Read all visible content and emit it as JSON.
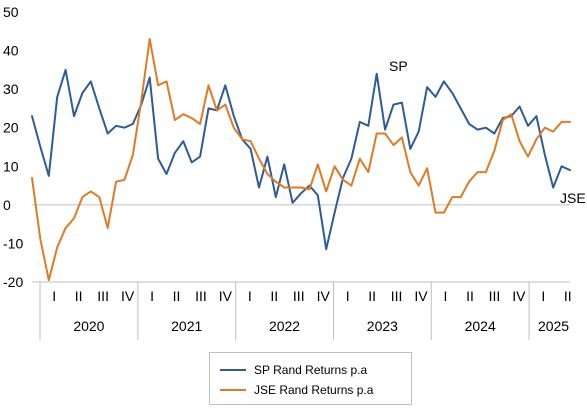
{
  "chart_data": {
    "type": "line",
    "title": "",
    "xlabel": "",
    "ylabel": "",
    "ylim": [
      -20,
      50
    ],
    "yticks": [
      -20,
      -10,
      0,
      10,
      20,
      30,
      40,
      50
    ],
    "grid": false,
    "legend_position": "bottom",
    "quarter_ticks": [
      "I",
      "II",
      "III",
      "IV",
      "I",
      "II",
      "III",
      "IV",
      "I",
      "II",
      "III",
      "IV",
      "I",
      "II",
      "III",
      "IV",
      "I",
      "II",
      "III",
      "IV",
      "I",
      "II"
    ],
    "years": [
      {
        "label": "2020",
        "start_q": 0,
        "end_q": 3
      },
      {
        "label": "2021",
        "start_q": 4,
        "end_q": 7
      },
      {
        "label": "2022",
        "start_q": 8,
        "end_q": 11
      },
      {
        "label": "2023",
        "start_q": 12,
        "end_q": 15
      },
      {
        "label": "2024",
        "start_q": 16,
        "end_q": 19
      },
      {
        "label": "2025",
        "start_q": 20,
        "end_q": 21
      }
    ],
    "series": [
      {
        "name": "SP Rand Returns p.a",
        "end_label": "SP",
        "color": "#2e5b9a",
        "values": [
          23,
          15,
          7.5,
          28,
          35,
          23,
          29,
          32,
          25,
          18.5,
          20.5,
          20,
          21,
          26,
          33,
          12,
          8,
          13.5,
          16.5,
          11,
          12.5,
          25,
          24.5,
          31,
          23,
          17,
          14.5,
          4.5,
          12.5,
          2,
          10.5,
          0.5,
          3,
          5,
          2.5,
          -11.5,
          -2,
          7,
          12,
          21.5,
          20.5,
          34,
          19.5,
          26,
          26.5,
          14.5,
          19,
          30.5,
          28,
          32,
          29,
          25,
          21,
          19.5,
          20,
          18.5,
          22.5,
          23,
          25.5,
          20.5,
          23,
          13,
          4.5,
          10,
          9
        ]
      },
      {
        "name": "JSE Rand Returns p.a",
        "end_label": "JSE",
        "color": "#e07b24",
        "values": [
          7,
          -9,
          -19.5,
          -11,
          -6,
          -3.5,
          2,
          3.5,
          2,
          -6,
          6,
          6.5,
          13,
          27,
          43,
          31,
          32,
          22,
          23.5,
          22.5,
          21,
          31,
          24.5,
          26,
          20,
          17,
          16.5,
          12,
          8,
          6,
          4.5,
          4.5,
          4.5,
          4,
          10.5,
          3.5,
          10,
          6.5,
          5,
          12,
          8.5,
          18.5,
          18.5,
          15.5,
          17.5,
          8.5,
          5,
          9.5,
          -2,
          -2,
          2,
          2,
          6,
          8.5,
          8.5,
          14,
          22,
          23.5,
          16.5,
          12.5,
          17,
          20,
          19,
          21.5,
          21.5
        ]
      }
    ]
  }
}
